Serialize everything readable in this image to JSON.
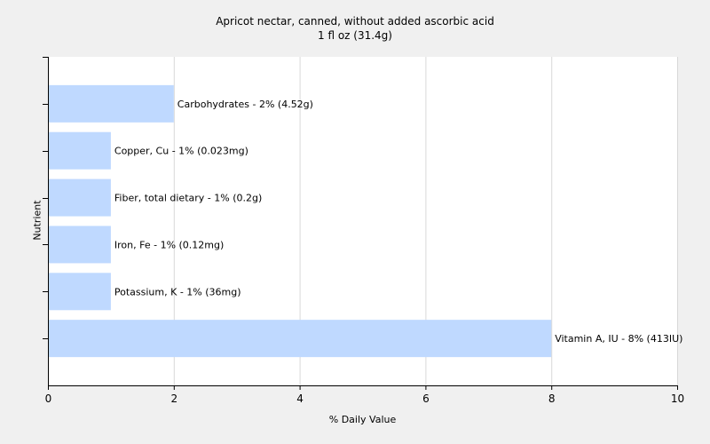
{
  "chart_data": {
    "type": "bar",
    "orientation": "horizontal",
    "title": "Apricot nectar, canned, without added ascorbic acid",
    "subtitle": "1 fl oz (31.4g)",
    "xlabel": "% Daily Value",
    "ylabel": "Nutrient",
    "xlim": [
      0,
      10
    ],
    "xticks": [
      "0",
      "2",
      "4",
      "6",
      "8",
      "10"
    ],
    "grid": true,
    "categories": [
      "Carbohydrates",
      "Copper, Cu",
      "Fiber, total dietary",
      "Iron, Fe",
      "Potassium, K",
      "Vitamin A, IU"
    ],
    "values": [
      2,
      1,
      1,
      1,
      1,
      8
    ],
    "labels": [
      "Carbohydrates - 2% (4.52g)",
      "Copper, Cu - 1% (0.023mg)",
      "Fiber, total dietary - 1% (0.2g)",
      "Iron, Fe - 1% (0.12mg)",
      "Potassium, K - 1% (36mg)",
      "Vitamin A, IU - 8% (413IU)"
    ],
    "colors": {
      "bar": "#bfd9ff",
      "grid": "#d8d8d8",
      "plot_bg": "#ffffff"
    }
  }
}
